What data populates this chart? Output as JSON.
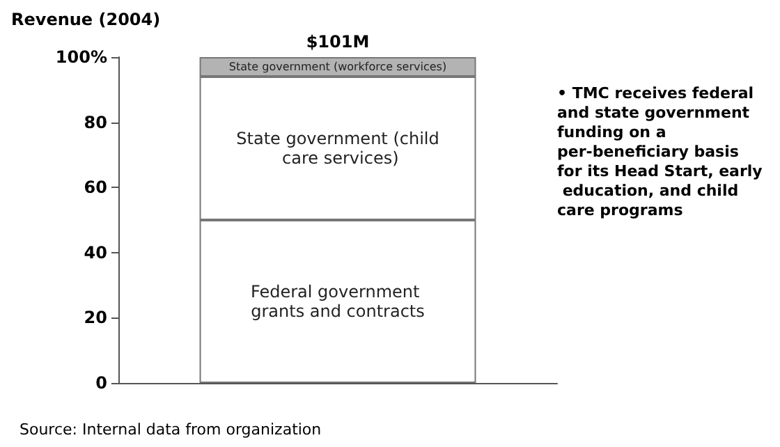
{
  "chart_data": {
    "type": "bar",
    "stacked": true,
    "ylabel": "Revenue (2004)",
    "categories": [
      null
    ],
    "series": [
      {
        "name": "Federal government grants and contracts",
        "color": "#ffffff",
        "values": [
          50
        ]
      },
      {
        "name": "State government (child care services)",
        "color": "#ffffff",
        "values": [
          44
        ]
      },
      {
        "name": "State government (workforce services)",
        "color": "#b3b3b3",
        "values": [
          6
        ]
      }
    ],
    "ylim": [
      0,
      100
    ],
    "yticks": [
      0,
      20,
      40,
      60,
      80,
      {
        "value": 100,
        "label": "100%"
      }
    ],
    "totals": [
      "$101M"
    ],
    "grid": false,
    "legend": false,
    "annotations": [
      "• TMC receives federal and state government funding on a per-beneficiary basis for its Head Start, early education, and child care programs",
      "Source: Internal data from organization"
    ]
  }
}
